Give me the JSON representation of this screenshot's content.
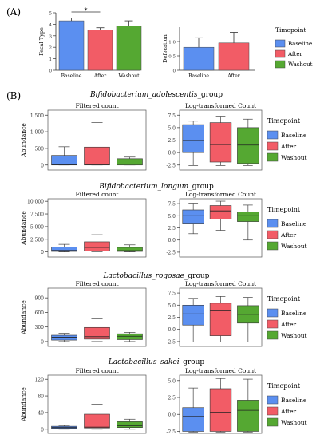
{
  "colors": {
    "Baseline": "#5b8ff0",
    "After": "#f25c66",
    "Washout": "#55a832",
    "axis": "#333333",
    "whisker": "#333333"
  },
  "panel_labels": {
    "a": "(A)",
    "b": "(B)"
  },
  "legend": {
    "title": "Timepoint",
    "entries": [
      "Baseline",
      "After",
      "Washout"
    ]
  },
  "chart_data": [
    {
      "id": "A1",
      "type": "bar",
      "categories": [
        "Baseline",
        "After",
        "Washout"
      ],
      "values": [
        4.3,
        3.5,
        3.85
      ],
      "errors": [
        0.25,
        0.2,
        0.45
      ],
      "ylabel": "Fecal Type",
      "ylim": [
        0,
        5
      ],
      "yticks": [
        0,
        1,
        2,
        3,
        4,
        5
      ],
      "annotation": "*"
    },
    {
      "id": "A2",
      "type": "bar",
      "categories": [
        "Baseline",
        "After"
      ],
      "values": [
        0.8,
        0.95
      ],
      "errors": [
        0.33,
        0.37
      ],
      "ylabel": "Defecation",
      "ylim": [
        0,
        1.5
      ],
      "yticks": [
        0,
        0.5,
        1.0
      ],
      "ytick_labels": [
        "0",
        "0.5",
        "1.0"
      ]
    },
    {
      "id": "B1f",
      "type": "box",
      "group": "Bifidobacterium_adolescentis_group",
      "subtitle": "Filtered count",
      "ylabel": "Abundance",
      "ylim": [
        -150,
        1650
      ],
      "yticks": [
        0,
        500,
        1000,
        1500
      ],
      "ytick_labels": [
        "0",
        "500",
        "1,000",
        "1,500"
      ],
      "boxes": [
        {
          "name": "Baseline",
          "min": 0,
          "q1": 0,
          "median": 5,
          "q3": 290,
          "max": 550
        },
        {
          "name": "After",
          "min": 0,
          "q1": 0,
          "median": 20,
          "q3": 540,
          "max": 1280
        },
        {
          "name": "Washout",
          "min": 0,
          "q1": 0,
          "median": 30,
          "q3": 190,
          "max": 240
        }
      ]
    },
    {
      "id": "B1l",
      "type": "box",
      "group": "Bifidobacterium_adolescentis_group",
      "subtitle": "Log-transformed Count",
      "ylim": [
        -3.5,
        8.5
      ],
      "yticks": [
        -2.5,
        0,
        2.5,
        5.0,
        7.5
      ],
      "ytick_labels": [
        "-2.5",
        "0.0",
        "2.5",
        "5.0",
        "7.5"
      ],
      "boxes": [
        {
          "name": "Baseline",
          "min": -2.6,
          "q1": 0,
          "median": 2.4,
          "q3": 5.6,
          "max": 6.3
        },
        {
          "name": "After",
          "min": -2.6,
          "q1": -1.9,
          "median": 1.6,
          "q3": 6.0,
          "max": 7.3
        },
        {
          "name": "Washout",
          "min": -2.6,
          "q1": -2.2,
          "median": 1.5,
          "q3": 5.0,
          "max": 6.7
        }
      ]
    },
    {
      "id": "B2f",
      "type": "box",
      "group": "Bifidobacterium_longum_group",
      "subtitle": "Filtered count",
      "ylabel": "Abundance",
      "ylim": [
        -1000,
        10500
      ],
      "yticks": [
        0,
        2500,
        5000,
        7500,
        10000
      ],
      "ytick_labels": [
        "0",
        "2,500",
        "5,000",
        "7,500",
        "10,000"
      ],
      "boxes": [
        {
          "name": "Baseline",
          "min": 0,
          "q1": 100,
          "median": 300,
          "q3": 950,
          "max": 1500
        },
        {
          "name": "After",
          "min": 0,
          "q1": 150,
          "median": 900,
          "q3": 2000,
          "max": 3400
        },
        {
          "name": "Washout",
          "min": 0,
          "q1": 100,
          "median": 250,
          "q3": 900,
          "max": 1400
        }
      ]
    },
    {
      "id": "B2l",
      "type": "box",
      "group": "Bifidobacterium_longum_group",
      "subtitle": "Log-transformed Count",
      "ylim": [
        -3.5,
        8.5
      ],
      "yticks": [
        -2.5,
        0,
        2.5,
        5.0,
        7.5
      ],
      "ytick_labels": [
        "-2.5",
        "0.0",
        "2.5",
        "5.0",
        "7.5"
      ],
      "boxes": [
        {
          "name": "Baseline",
          "min": 1.3,
          "q1": 3.3,
          "median": 5.0,
          "q3": 6.2,
          "max": 7.6
        },
        {
          "name": "After",
          "min": 2.0,
          "q1": 4.3,
          "median": 6.0,
          "q3": 7.1,
          "max": 8.0
        },
        {
          "name": "Washout",
          "min": 0,
          "q1": 3.8,
          "median": 5.0,
          "q3": 5.8,
          "max": 7.2
        }
      ]
    },
    {
      "id": "B3f",
      "type": "box",
      "group": "Lactobacillus_rogosae_group",
      "subtitle": "Filtered count",
      "ylabel": "Abundance",
      "ylim": [
        -100,
        1100
      ],
      "yticks": [
        0,
        300,
        600,
        900
      ],
      "ytick_labels": [
        "0",
        "300",
        "600",
        "900"
      ],
      "boxes": [
        {
          "name": "Baseline",
          "min": 0,
          "q1": 30,
          "median": 90,
          "q3": 130,
          "max": 170
        },
        {
          "name": "After",
          "min": 0,
          "q1": 50,
          "median": 100,
          "q3": 290,
          "max": 470
        },
        {
          "name": "Washout",
          "min": 0,
          "q1": 40,
          "median": 110,
          "q3": 160,
          "max": 190
        }
      ]
    },
    {
      "id": "B3l",
      "type": "box",
      "group": "Lactobacillus_rogosae_group",
      "subtitle": "Log-transformed Count",
      "ylim": [
        -3.5,
        8.5
      ],
      "yticks": [
        -2.5,
        0,
        2.5,
        5.0,
        7.5
      ],
      "ytick_labels": [
        "-2.5",
        "0.0",
        "2.5",
        "5.0",
        "7.5"
      ],
      "boxes": [
        {
          "name": "Baseline",
          "min": -2.6,
          "q1": 0.9,
          "median": 3.2,
          "q3": 5.0,
          "max": 6.4
        },
        {
          "name": "After",
          "min": -2.6,
          "q1": -1.3,
          "median": 3.8,
          "q3": 5.4,
          "max": 6.8
        },
        {
          "name": "Washout",
          "min": -2.6,
          "q1": 1.3,
          "median": 3.1,
          "q3": 4.9,
          "max": 6.6
        }
      ]
    },
    {
      "id": "B4f",
      "type": "box",
      "group": "Lactobacillus_sakei_group",
      "subtitle": "Filtered count",
      "ylabel": "Abundance",
      "ylim": [
        -10,
        130
      ],
      "yticks": [
        0,
        40,
        80,
        120
      ],
      "ytick_labels": [
        "0",
        "40",
        "80",
        "120"
      ],
      "boxes": [
        {
          "name": "Baseline",
          "min": 0,
          "q1": 2,
          "median": 4,
          "q3": 7,
          "max": 9
        },
        {
          "name": "After",
          "min": 0,
          "q1": 3,
          "median": 5,
          "q3": 36,
          "max": 60
        },
        {
          "name": "Washout",
          "min": 0,
          "q1": 4,
          "median": 8,
          "q3": 18,
          "max": 24
        }
      ]
    },
    {
      "id": "B4l",
      "type": "box",
      "group": "Lactobacillus_sakei_group",
      "subtitle": "Log-transformed Count",
      "ylim": [
        -2.8,
        5.8
      ],
      "yticks": [
        -2.5,
        0,
        2.5,
        5.0
      ],
      "ytick_labels": [
        "-2.5",
        "0.0",
        "2.5",
        "5.0"
      ],
      "boxes": [
        {
          "name": "Baseline",
          "min": -2.6,
          "q1": -2.5,
          "median": -0.3,
          "q3": 1.0,
          "max": 3.9
        },
        {
          "name": "After",
          "min": -2.6,
          "q1": -2.5,
          "median": 0.3,
          "q3": 3.8,
          "max": 5.3
        },
        {
          "name": "Washout",
          "min": -2.6,
          "q1": -2.5,
          "median": 0.6,
          "q3": 2.1,
          "max": 5.2
        }
      ]
    }
  ],
  "group_titles": [
    {
      "italic": "Bifidobacterium_adolescentis",
      "rest": "_group"
    },
    {
      "italic": "Bifidobacterium_longum",
      "rest": "_group"
    },
    {
      "italic": "Lactobacillus_rogosae",
      "rest": "_group"
    },
    {
      "italic": "Lactobacillus_sakei",
      "rest": "_group"
    }
  ]
}
